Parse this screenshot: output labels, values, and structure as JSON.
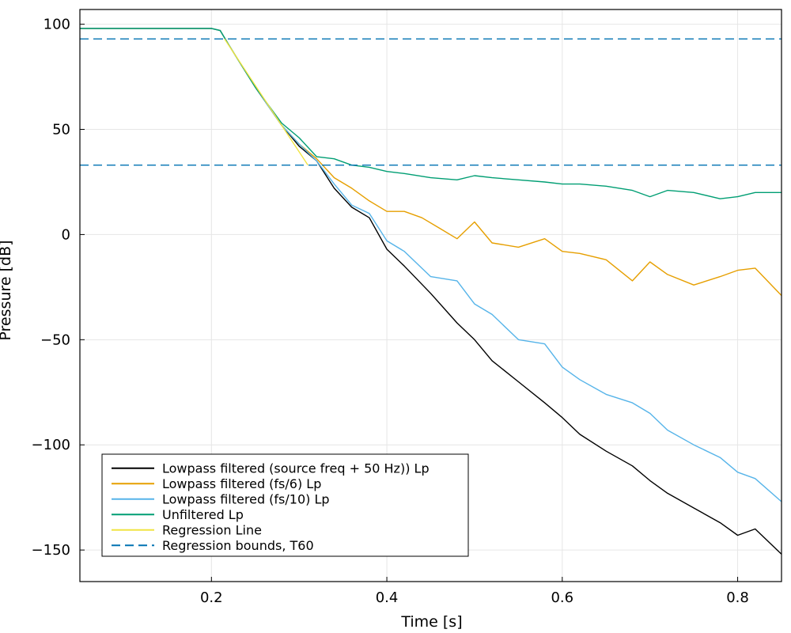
{
  "chart_data": {
    "type": "line",
    "title": "",
    "xlabel": "Time [s]",
    "ylabel": "Pressure [dB]",
    "xlim": [
      0.05,
      0.85
    ],
    "ylim": [
      -165,
      107
    ],
    "xticks": [
      0.2,
      0.4,
      0.6,
      0.8
    ],
    "xtick_labels": [
      "0.2",
      "0.4",
      "0.6",
      "0.8"
    ],
    "yticks": [
      100,
      50,
      0,
      -50,
      -100,
      -150
    ],
    "ytick_labels": [
      "100",
      "50",
      "0",
      "−50",
      "−100",
      "−150"
    ],
    "grid": true,
    "legend_position": "bottom-left",
    "series": [
      {
        "name": "Lowpass filtered (source freq + 50 Hz)) Lp",
        "color": "#000000",
        "dashed": false,
        "x": [
          0.05,
          0.2,
          0.21,
          0.22,
          0.25,
          0.28,
          0.3,
          0.32,
          0.34,
          0.36,
          0.38,
          0.4,
          0.42,
          0.45,
          0.48,
          0.5,
          0.52,
          0.55,
          0.58,
          0.6,
          0.62,
          0.65,
          0.68,
          0.7,
          0.72,
          0.75,
          0.78,
          0.8,
          0.82,
          0.85
        ],
        "y": [
          98,
          98,
          97,
          90,
          70,
          52,
          42,
          35,
          22,
          13,
          8,
          -7,
          -15,
          -28,
          -42,
          -50,
          -60,
          -70,
          -80,
          -87,
          -95,
          -103,
          -110,
          -117,
          -123,
          -130,
          -137,
          -143,
          -140,
          -152
        ]
      },
      {
        "name": "Lowpass filtered (fs/6) Lp",
        "color": "#e69f00",
        "dashed": false,
        "x": [
          0.05,
          0.2,
          0.21,
          0.22,
          0.25,
          0.28,
          0.3,
          0.32,
          0.34,
          0.36,
          0.38,
          0.4,
          0.42,
          0.44,
          0.46,
          0.48,
          0.5,
          0.52,
          0.55,
          0.58,
          0.6,
          0.62,
          0.65,
          0.68,
          0.7,
          0.72,
          0.75,
          0.78,
          0.8,
          0.82,
          0.85
        ],
        "y": [
          98,
          98,
          97,
          90,
          70,
          52,
          43,
          36,
          27,
          22,
          16,
          11,
          11,
          8,
          3,
          -2,
          6,
          -4,
          -6,
          -2,
          -8,
          -9,
          -12,
          -22,
          -13,
          -19,
          -24,
          -20,
          -17,
          -16,
          -29
        ]
      },
      {
        "name": "Lowpass filtered (fs/10) Lp",
        "color": "#56b4e9",
        "dashed": false,
        "x": [
          0.05,
          0.2,
          0.21,
          0.22,
          0.25,
          0.28,
          0.3,
          0.32,
          0.34,
          0.36,
          0.38,
          0.4,
          0.42,
          0.45,
          0.48,
          0.5,
          0.52,
          0.55,
          0.58,
          0.6,
          0.62,
          0.65,
          0.68,
          0.7,
          0.72,
          0.75,
          0.78,
          0.8,
          0.82,
          0.85
        ],
        "y": [
          98,
          98,
          97,
          90,
          70,
          52,
          43,
          35,
          24,
          14,
          10,
          -3,
          -8,
          -20,
          -22,
          -33,
          -38,
          -50,
          -52,
          -63,
          -69,
          -76,
          -80,
          -85,
          -93,
          -100,
          -106,
          -113,
          -116,
          -127
        ]
      },
      {
        "name": "Unfiltered Lp",
        "color": "#009e73",
        "dashed": false,
        "x": [
          0.05,
          0.2,
          0.21,
          0.22,
          0.25,
          0.28,
          0.3,
          0.32,
          0.34,
          0.36,
          0.38,
          0.4,
          0.42,
          0.45,
          0.48,
          0.5,
          0.52,
          0.55,
          0.58,
          0.6,
          0.62,
          0.65,
          0.68,
          0.7,
          0.72,
          0.75,
          0.78,
          0.8,
          0.82,
          0.85
        ],
        "y": [
          98,
          98,
          97,
          90,
          70,
          53,
          46,
          37,
          36,
          33,
          32,
          30,
          29,
          27,
          26,
          28,
          27,
          26,
          25,
          24,
          24,
          23,
          21,
          18,
          21,
          20,
          17,
          18,
          20,
          20
        ]
      },
      {
        "name": "Regression Line",
        "color": "#f0e442",
        "dashed": false,
        "x": [
          0.215,
          0.31
        ],
        "y": [
          93,
          33
        ]
      },
      {
        "name": "Regression bounds, T60",
        "color": "#0072b2",
        "dashed": true,
        "x": [
          0.05,
          0.85
        ],
        "y": [
          93,
          93
        ]
      },
      {
        "name": "",
        "color": "#0072b2",
        "dashed": true,
        "x": [
          0.05,
          0.85
        ],
        "y": [
          33,
          33
        ]
      }
    ]
  }
}
